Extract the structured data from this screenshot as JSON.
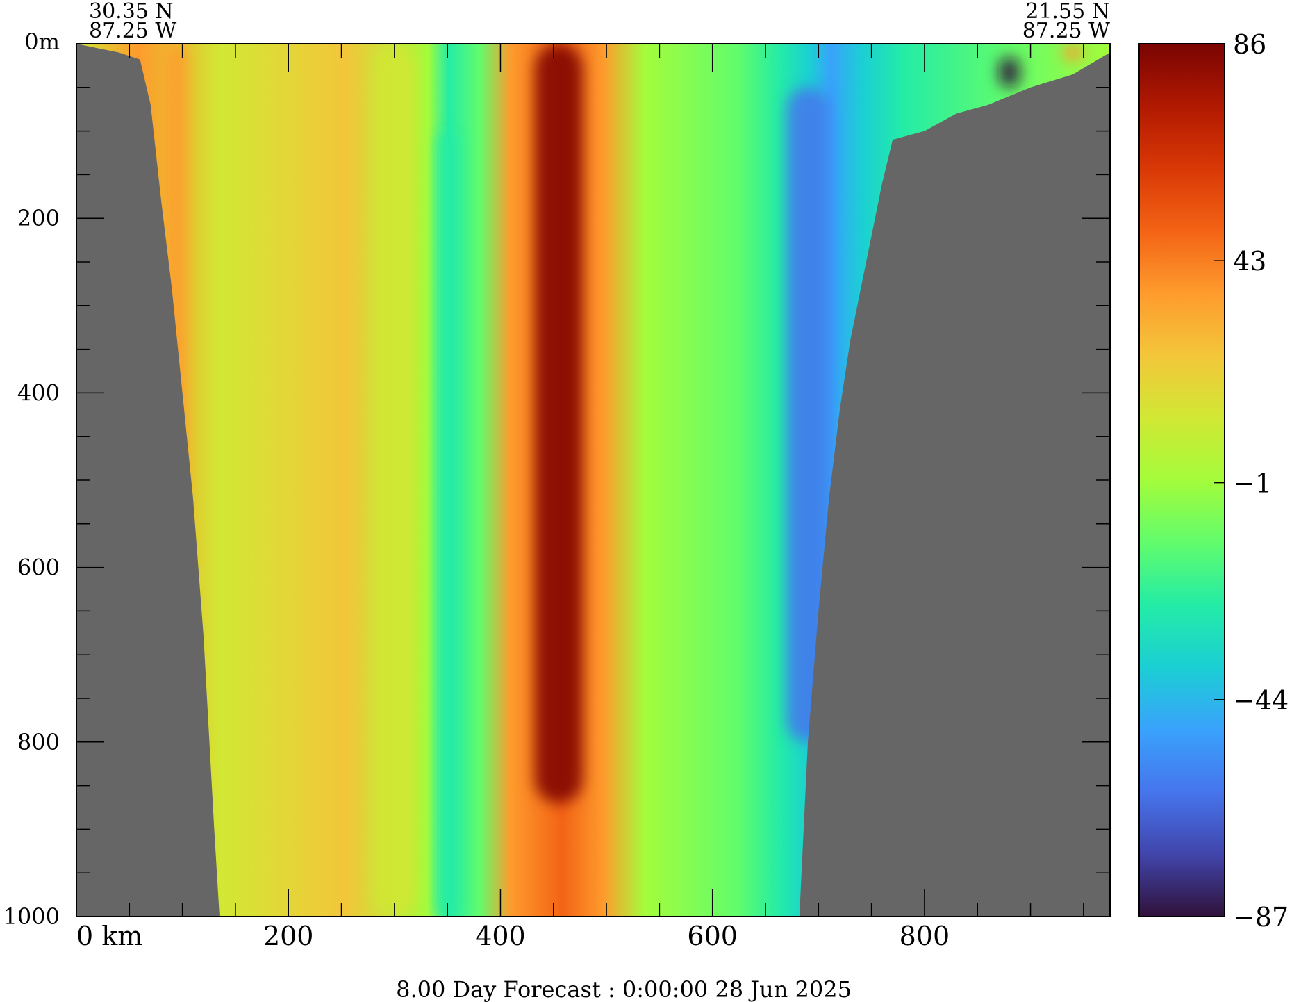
{
  "chart_data": {
    "type": "heatmap",
    "title": "8.00 Day Forecast :  0:00:00  28 Jun 2025",
    "endpoints": {
      "left": {
        "lat": "30.35 N",
        "lon": "87.25 W"
      },
      "right": {
        "lat": "21.55 N",
        "lon": "87.25 W"
      }
    },
    "xlim": [
      0,
      975
    ],
    "ylim": [
      0,
      1000
    ],
    "x_ticks": [
      0,
      200,
      400,
      600,
      800
    ],
    "x_tick_labels": [
      "0 km",
      "200",
      "400",
      "600",
      "800"
    ],
    "x_minor_ticks": [
      50,
      100,
      150,
      250,
      300,
      350,
      450,
      500,
      550,
      650,
      700,
      750,
      850,
      900,
      950
    ],
    "y_ticks": [
      0,
      200,
      400,
      600,
      800,
      1000
    ],
    "y_tick_labels": [
      "0m",
      "200",
      "400",
      "600",
      "800",
      "1000"
    ],
    "y_minor_ticks": [
      50,
      100,
      150,
      250,
      300,
      350,
      450,
      500,
      550,
      650,
      700,
      750,
      850,
      900,
      950
    ],
    "colorbar": {
      "min": -87,
      "max": 86,
      "tick_values": [
        86,
        43,
        -1,
        -44,
        -87
      ],
      "tick_labels": [
        "86",
        "43",
        "−1",
        "−44",
        "−87"
      ],
      "colormap": [
        "#30123b",
        "#4145ab",
        "#4675ed",
        "#39a2fc",
        "#1bcfd4",
        "#24eca6",
        "#61fc6c",
        "#a4fc3b",
        "#d1e834",
        "#f3c63a",
        "#fe9b2d",
        "#f36315",
        "#d93806",
        "#b11901",
        "#7a0402"
      ]
    },
    "land_color": "#666666",
    "bathymetry": {
      "left_x": [
        0,
        40,
        60,
        70,
        80,
        90,
        100,
        110,
        120,
        130,
        135
      ],
      "left_depth": [
        0,
        10,
        18,
        70,
        180,
        280,
        400,
        520,
        680,
        900,
        1000
      ],
      "right_x": [
        682,
        690,
        700,
        710,
        720,
        730,
        740,
        750,
        760,
        770,
        800,
        830,
        860,
        900,
        940,
        975
      ],
      "right_depth": [
        1000,
        800,
        650,
        520,
        420,
        340,
        280,
        220,
        160,
        110,
        100,
        80,
        70,
        50,
        35,
        10
      ]
    },
    "features": [
      {
        "x_center": 455,
        "x_width": 45,
        "depth_top": 0,
        "depth_bottom": 870,
        "value": 86
      },
      {
        "x_center": 95,
        "x_width": 20,
        "depth_top": 0,
        "depth_bottom": 600,
        "value": 35
      },
      {
        "x_center": 300,
        "x_width": 40,
        "depth_top": 0,
        "depth_bottom": 1000,
        "value": 15
      },
      {
        "x_center": 350,
        "x_width": 20,
        "depth_top": 100,
        "depth_bottom": 1000,
        "value": -30
      },
      {
        "x_center": 690,
        "x_width": 40,
        "depth_top": 50,
        "depth_bottom": 800,
        "value": -60
      },
      {
        "x_center": 880,
        "x_width": 20,
        "depth_top": 15,
        "depth_bottom": 50,
        "value": -87
      },
      {
        "x_center": 940,
        "x_width": 20,
        "depth_top": 0,
        "depth_bottom": 20,
        "value": 40
      }
    ]
  }
}
